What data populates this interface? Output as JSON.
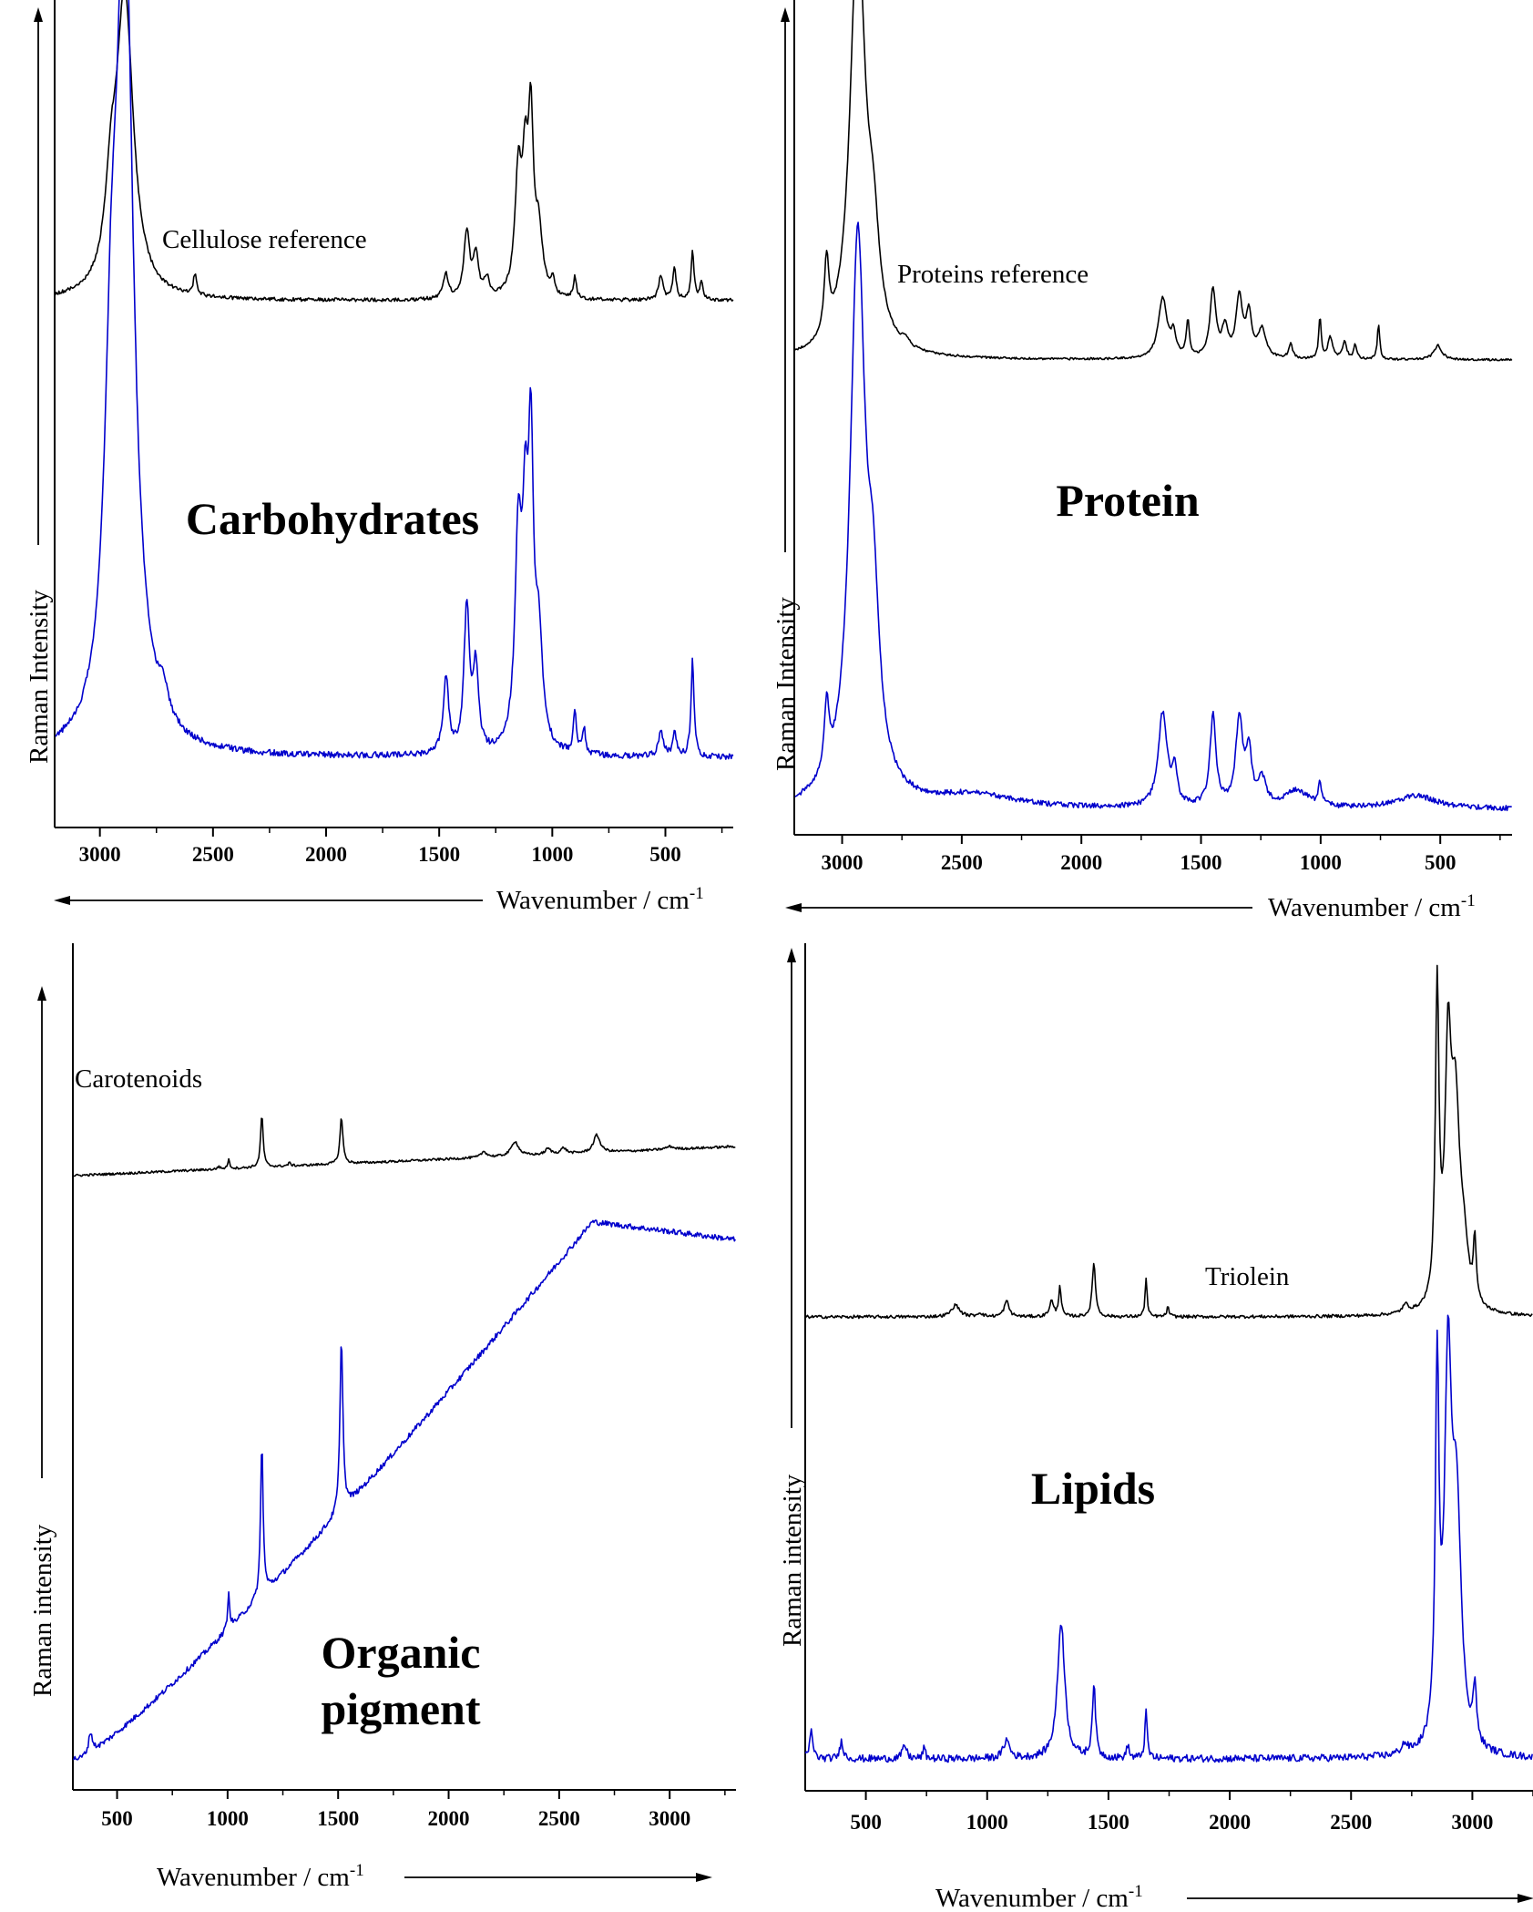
{
  "colors": {
    "reference": "#000000",
    "sample": "#0000cc",
    "axis": "#000000"
  },
  "chart_data": [
    {
      "type": "line",
      "label": "Carbohydrates",
      "xlabel": "Wavenumber / cm",
      "xlabel_sup": "-1",
      "ylabel": "Raman Intensity",
      "xlim": [
        3200,
        200
      ],
      "reversed_x": true,
      "xticks": [
        3000,
        2500,
        2000,
        1500,
        1000,
        500
      ],
      "series": [
        {
          "name": "Cellulose reference",
          "role": "reference",
          "base": 0.7,
          "noise": 0.006,
          "peaks": [
            [
              2890,
              1.0,
              45
            ],
            [
              2950,
              0.25,
              30
            ],
            [
              2580,
              0.07,
              8
            ],
            [
              1470,
              0.08,
              14
            ],
            [
              1378,
              0.22,
              15
            ],
            [
              1338,
              0.14,
              14
            ],
            [
              1290,
              0.06,
              14
            ],
            [
              1150,
              0.4,
              18
            ],
            [
              1120,
              0.35,
              14
            ],
            [
              1095,
              0.55,
              14
            ],
            [
              1060,
              0.2,
              20
            ],
            [
              998,
              0.05,
              10
            ],
            [
              900,
              0.07,
              8
            ],
            [
              520,
              0.08,
              12
            ],
            [
              460,
              0.11,
              9
            ],
            [
              380,
              0.16,
              8
            ],
            [
              340,
              0.06,
              8
            ]
          ]
        },
        {
          "role": "sample",
          "base": 0.06,
          "noise": 0.006,
          "peaks": [
            [
              2890,
              1.6,
              45
            ],
            [
              2950,
              0.5,
              35
            ],
            [
              2720,
              0.05,
              30
            ],
            [
              1470,
              0.15,
              14
            ],
            [
              1378,
              0.28,
              15
            ],
            [
              1338,
              0.16,
              14
            ],
            [
              1150,
              0.4,
              18
            ],
            [
              1120,
              0.35,
              14
            ],
            [
              1095,
              0.55,
              14
            ],
            [
              1060,
              0.2,
              20
            ],
            [
              900,
              0.08,
              8
            ],
            [
              860,
              0.05,
              8
            ],
            [
              520,
              0.05,
              12
            ],
            [
              460,
              0.05,
              9
            ],
            [
              380,
              0.19,
              8
            ]
          ]
        }
      ]
    },
    {
      "type": "line",
      "label": "Protein",
      "xlabel": "Wavenumber / cm",
      "xlabel_sup": "-1",
      "ylabel": "Raman Intensity",
      "xlim": [
        3200,
        200
      ],
      "reversed_x": true,
      "xticks": [
        3000,
        2500,
        2000,
        1500,
        1000,
        500
      ],
      "series": [
        {
          "name": "Proteins reference",
          "role": "reference",
          "base": 0.56,
          "noise": 0.003,
          "peaks": [
            [
              2935,
              1.2,
              38
            ],
            [
              2870,
              0.25,
              30
            ],
            [
              3065,
              0.21,
              12
            ],
            [
              2735,
              0.02,
              15
            ],
            [
              1660,
              0.17,
              22
            ],
            [
              1615,
              0.06,
              12
            ],
            [
              1555,
              0.1,
              8
            ],
            [
              1450,
              0.19,
              15
            ],
            [
              1400,
              0.08,
              15
            ],
            [
              1340,
              0.17,
              16
            ],
            [
              1300,
              0.12,
              14
            ],
            [
              1245,
              0.08,
              20
            ],
            [
              1125,
              0.04,
              10
            ],
            [
              1003,
              0.12,
              6
            ],
            [
              960,
              0.06,
              12
            ],
            [
              900,
              0.05,
              10
            ],
            [
              855,
              0.04,
              8
            ],
            [
              758,
              0.1,
              6
            ],
            [
              510,
              0.04,
              20
            ]
          ]
        },
        {
          "role": "sample",
          "base": 0.02,
          "noise": 0.006,
          "peaks": [
            [
              2935,
              1.3,
              38
            ],
            [
              2870,
              0.35,
              30
            ],
            [
              3065,
              0.16,
              12
            ],
            [
              2450,
              0.03,
              200
            ],
            [
              1660,
              0.22,
              22
            ],
            [
              1610,
              0.08,
              12
            ],
            [
              1450,
              0.21,
              15
            ],
            [
              1340,
              0.2,
              18
            ],
            [
              1300,
              0.12,
              14
            ],
            [
              1245,
              0.06,
              20
            ],
            [
              1100,
              0.04,
              60
            ],
            [
              1003,
              0.05,
              8
            ],
            [
              600,
              0.03,
              100
            ]
          ]
        }
      ]
    },
    {
      "type": "line",
      "label": "Organic pigment",
      "xlabel": "Wavenumber / cm",
      "xlabel_sup": "-1",
      "ylabel": "Raman intensity",
      "xlim": [
        300,
        3300
      ],
      "reversed_x": false,
      "xticks": [
        500,
        1000,
        1500,
        2000,
        2500,
        3000
      ],
      "series": [
        {
          "name": "Carotenoids",
          "role": "reference",
          "base": 0.75,
          "slope": 0.1,
          "noise": 0.004,
          "peaks": [
            [
              1155,
              0.18,
              7
            ],
            [
              1515,
              0.16,
              8
            ],
            [
              1005,
              0.03,
              6
            ],
            [
              960,
              0.01,
              6
            ],
            [
              1280,
              0.01,
              8
            ],
            [
              2160,
              0.02,
              15
            ],
            [
              2300,
              0.05,
              20
            ],
            [
              2450,
              0.02,
              15
            ],
            [
              2520,
              0.02,
              15
            ],
            [
              2670,
              0.06,
              18
            ],
            [
              3000,
              0.01,
              20
            ]
          ]
        },
        {
          "role": "sample",
          "base": 0.0,
          "noise": 0.004,
          "peaks": [
            [
              1155,
              0.22,
              7
            ],
            [
              1515,
              0.25,
              8
            ],
            [
              1005,
              0.05,
              6
            ],
            [
              380,
              0.03,
              10
            ]
          ]
        }
      ]
    },
    {
      "type": "line",
      "label": "Lipids",
      "xlabel": "Wavenumber / cm",
      "xlabel_sup": "-1",
      "ylabel": "Raman intensity",
      "xlim": [
        250,
        3250
      ],
      "reversed_x": false,
      "xticks": [
        500,
        1000,
        1500,
        2000,
        2500,
        3000
      ],
      "series": [
        {
          "name": "Triolein",
          "role": "reference",
          "base": 0.595,
          "noise": 0.002,
          "peaks": [
            [
              2855,
              0.4,
              9
            ],
            [
              2900,
              0.3,
              15
            ],
            [
              2930,
              0.25,
              22
            ],
            [
              2965,
              0.06,
              20
            ],
            [
              3010,
              0.08,
              7
            ],
            [
              2725,
              0.01,
              15
            ],
            [
              1655,
              0.05,
              5
            ],
            [
              1745,
              0.012,
              6
            ],
            [
              1440,
              0.07,
              8
            ],
            [
              1300,
              0.04,
              6
            ],
            [
              1265,
              0.02,
              10
            ],
            [
              1080,
              0.02,
              12
            ],
            [
              870,
              0.015,
              20
            ],
            [
              970,
              0.005,
              12
            ]
          ]
        },
        {
          "role": "sample",
          "base": 0.04,
          "noise": 0.004,
          "peaks": [
            [
              2855,
              0.4,
              9
            ],
            [
              2900,
              0.4,
              18
            ],
            [
              2935,
              0.25,
              22
            ],
            [
              3010,
              0.06,
              8
            ],
            [
              2720,
              0.01,
              15
            ],
            [
              1305,
              0.15,
              18
            ],
            [
              1440,
              0.08,
              8
            ],
            [
              1655,
              0.05,
              6
            ],
            [
              1080,
              0.02,
              15
            ],
            [
              400,
              0.02,
              8
            ],
            [
              275,
              0.03,
              8
            ],
            [
              660,
              0.015,
              10
            ],
            [
              1580,
              0.015,
              6
            ],
            [
              740,
              0.012,
              6
            ]
          ]
        }
      ]
    }
  ]
}
